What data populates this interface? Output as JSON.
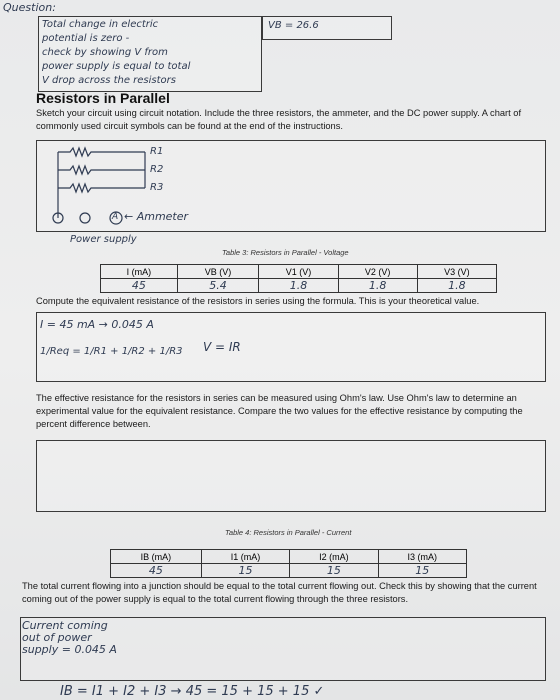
{
  "question": {
    "label": "Question:",
    "lines": [
      "Total change in electric",
      "potential is zero -",
      "check by showing V from",
      "power supply is equal to total",
      "V drop across the resistors"
    ],
    "vb": "VB = 26.6"
  },
  "section": {
    "title": "Resistors in Parallel",
    "instructions": "Sketch your circuit using circuit notation. Include the three resistors, the ammeter, and the DC power supply. A chart of commonly used circuit symbols can be found at the end of the instructions."
  },
  "circuit": {
    "resistors": [
      "R1",
      "R2",
      "R3"
    ],
    "ammeter": "A",
    "ammeter_label": "← Ammeter",
    "power_supply": "Power supply"
  },
  "table_3": {
    "caption": "Table 3: Resistors in Parallel - Voltage",
    "headers": [
      "I (mA)",
      "VB (V)",
      "V1 (V)",
      "V2 (V)",
      "V3 (V)"
    ],
    "rows": [
      [
        "45",
        "5.4",
        "1.8",
        "1.8",
        "1.8"
      ]
    ]
  },
  "compute": {
    "prompt": "Compute the equivalent resistance of the resistors in series using the formula. This is your theoretical value.",
    "work": [
      "I = 45 mA → 0.045 A",
      "1/Req = 1/R1 + 1/R2 + 1/R3",
      "V = IR"
    ]
  },
  "effective": {
    "prompt": "The effective resistance for the resistors in series can be measured using Ohm's law. Use Ohm's law to determine an experimental value for the equivalent resistance. Compare the two values for the effective resistance by computing the percent difference between."
  },
  "table_4": {
    "caption": "Table 4: Resistors in Parallel - Current",
    "headers": [
      "IB (mA)",
      "I1 (mA)",
      "I2 (mA)",
      "I3 (mA)"
    ],
    "rows": [
      [
        "45",
        "15",
        "15",
        "15"
      ]
    ]
  },
  "junction": {
    "prompt": "The total current flowing into a junction should be equal to the total current flowing out. Check this by showing that the current coming out of the power supply is equal to the total current flowing through the three resistors.",
    "work": [
      "Current coming",
      "out of power",
      "supply = 0.045 A"
    ],
    "equation": "IB = I1 + I2 + I3 → 45 = 15 + 15 + 15 ✓"
  }
}
